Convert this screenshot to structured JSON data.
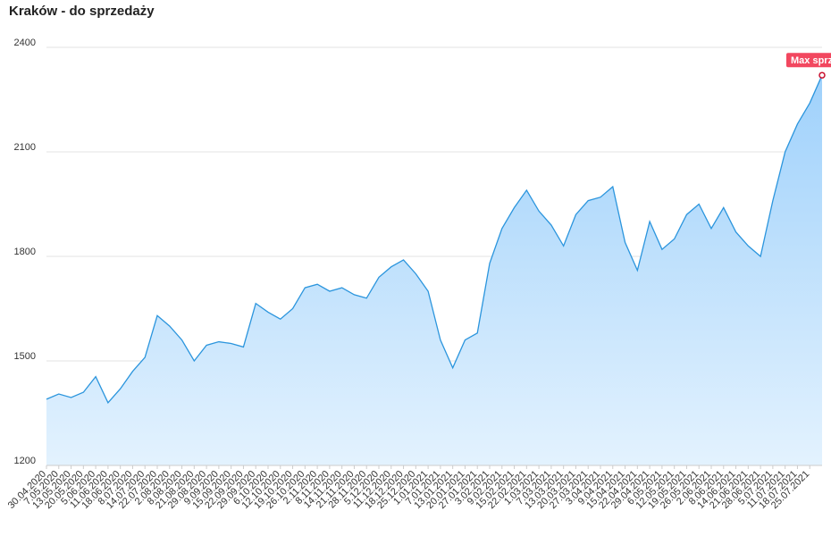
{
  "chart_data": {
    "type": "area",
    "title": "Kraków - do sprzedaży",
    "categories": [
      "30.04.2020",
      "7.05.2020",
      "13.05.2020",
      "20.05.2020",
      "5.06.2020",
      "11.06.2020",
      "18.06.2020",
      "8.07.2020",
      "14.07.2020",
      "22.07.2020",
      "2.08.2020",
      "8.08.2020",
      "21.08.2020",
      "29.08.2020",
      "9.09.2020",
      "15.09.2020",
      "22.09.2020",
      "29.09.2020",
      "6.10.2020",
      "12.10.2020",
      "19.10.2020",
      "26.10.2020",
      "2.11.2020",
      "8.11.2020",
      "14.11.2020",
      "21.11.2020",
      "28.11.2020",
      "5.12.2020",
      "11.12.2020",
      "18.12.2020",
      "25.12.2020",
      "1.01.2021",
      "7.01.2021",
      "13.01.2021",
      "20.01.2021",
      "27.01.2021",
      "3.02.2021",
      "9.02.2021",
      "15.02.2021",
      "22.02.2021",
      "1.03.2021",
      "7.03.2021",
      "13.03.2021",
      "20.03.2021",
      "27.03.2021",
      "3.04.2021",
      "9.04.2021",
      "15.04.2021",
      "22.04.2021",
      "29.04.2021",
      "6.05.2021",
      "12.05.2021",
      "19.05.2021",
      "26.05.2021",
      "2.06.2021",
      "8.06.2021",
      "14.06.2021",
      "21.06.2021",
      "28.06.2021",
      "5.07.2021",
      "11.07.2021",
      "18.07.2021",
      "25.07.2021",
      null
    ],
    "values": [
      1390,
      1405,
      1395,
      1410,
      1455,
      1380,
      1420,
      1470,
      1510,
      1630,
      1600,
      1560,
      1500,
      1545,
      1555,
      1550,
      1540,
      1665,
      1640,
      1620,
      1650,
      1710,
      1720,
      1700,
      1710,
      1690,
      1680,
      1740,
      1770,
      1790,
      1750,
      1700,
      1560,
      1480,
      1560,
      1580,
      1780,
      1880,
      1940,
      1990,
      1930,
      1890,
      1830,
      1920,
      1960,
      1970,
      2000,
      1840,
      1760,
      1900,
      1820,
      1850,
      1920,
      1950,
      1880,
      1940,
      1870,
      1830,
      1800,
      1960,
      2100,
      2180,
      2240,
      2320
    ],
    "color": "#2b95dd",
    "ylim": [
      1200,
      2400
    ],
    "yticks": [
      1200,
      1500,
      1800,
      2100,
      2400
    ],
    "grid": true,
    "annotation": "Max sprz"
  }
}
